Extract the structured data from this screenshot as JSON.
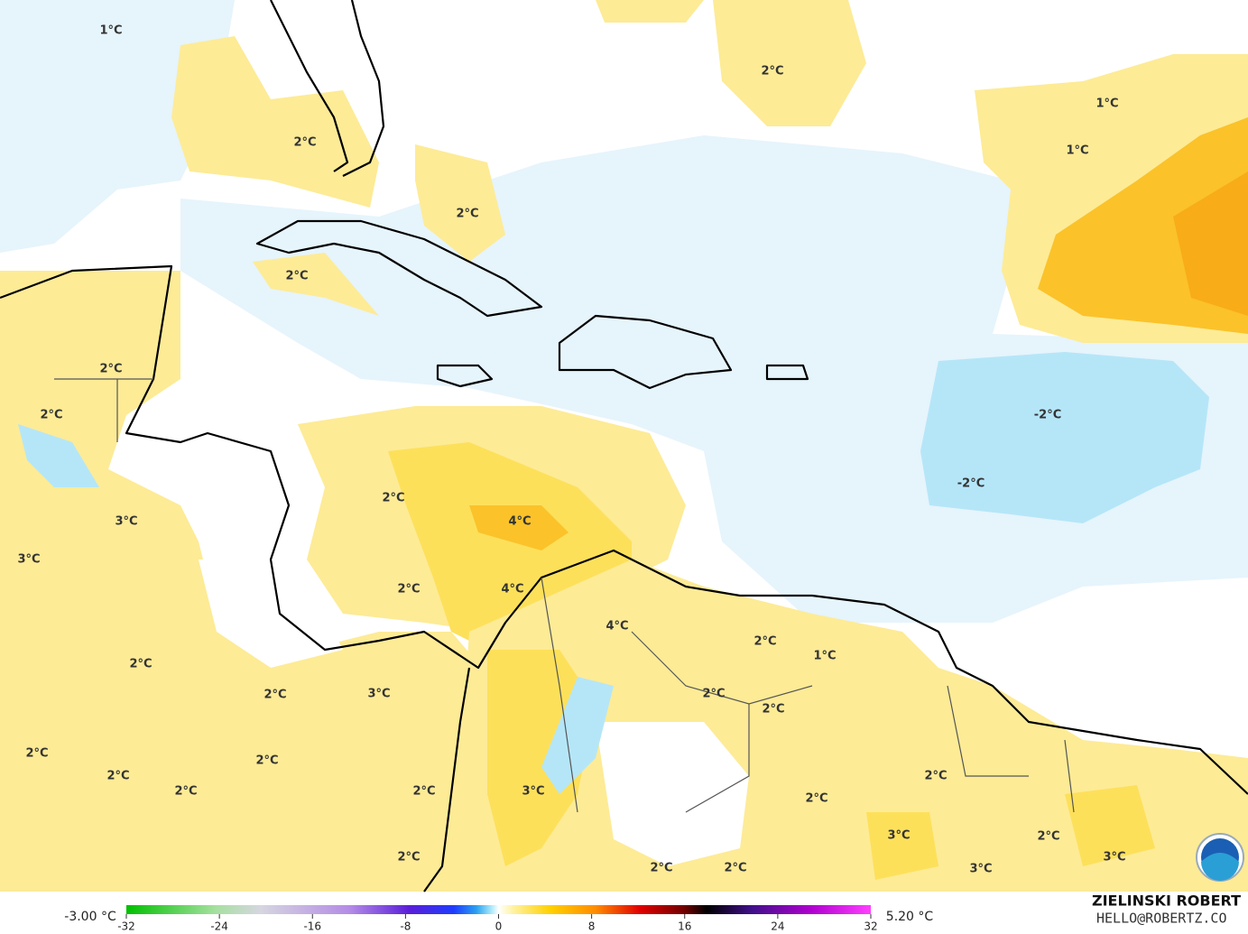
{
  "map": {
    "contour_labels": [
      "1°C",
      "2°C",
      "1°C",
      "2°C",
      "1°C",
      "2°C",
      "2°C",
      "2°C",
      "-2°C",
      "2°C",
      "-2°C",
      "2°C",
      "4°C",
      "3°C",
      "3°C",
      "2°C",
      "4°C",
      "4°C",
      "2°C",
      "1°C",
      "2°C",
      "2°C",
      "3°C",
      "2°C",
      "2°C",
      "2°C",
      "2°C",
      "2°C",
      "2°C",
      "2°C",
      "2°C",
      "3°C",
      "2°C",
      "3°C",
      "2°C",
      "2°C",
      "3°C",
      "2°C",
      "2°C",
      "3°C"
    ]
  },
  "colorbar": {
    "min_label": "-3.00 °C",
    "max_label": "5.20 °C",
    "ticks": [
      -32,
      -24,
      -16,
      -8,
      0,
      8,
      16,
      24,
      32
    ]
  },
  "credit": {
    "name": "ZIELINSKI ROBERT",
    "email": "HELLO@ROBERTZ.CO"
  }
}
